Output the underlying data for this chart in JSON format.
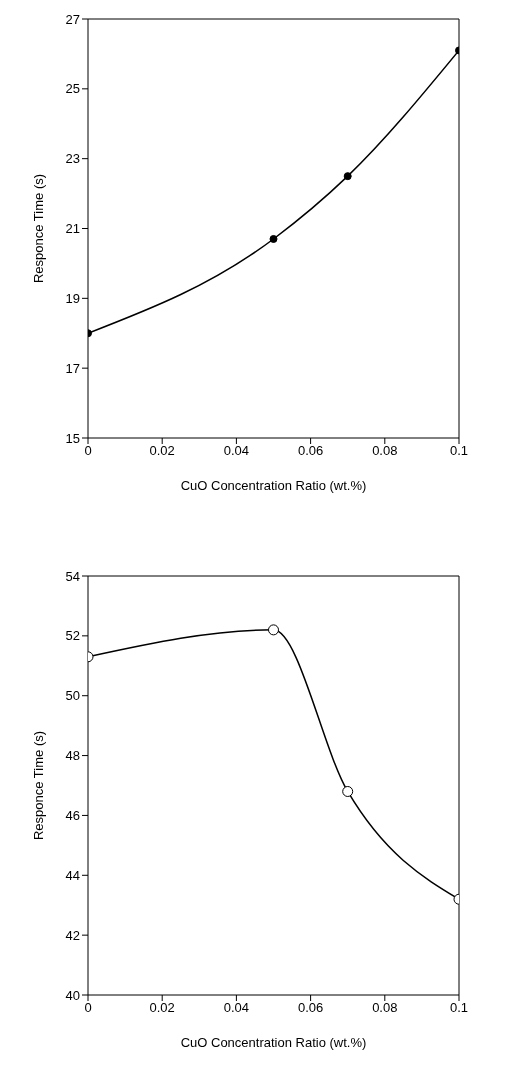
{
  "chart_data": [
    {
      "type": "line",
      "xlabel": "CuO Concentration Ratio (wt.%)",
      "ylabel": "Responce Time (s)",
      "x": [
        0,
        0.05,
        0.07,
        0.1
      ],
      "series": [
        {
          "color": "#000000",
          "values": [
            18.0,
            20.7,
            22.5,
            26.1
          ]
        }
      ],
      "xlim": [
        0,
        0.1
      ],
      "xticks": [
        0,
        0.02,
        0.04,
        0.06,
        0.08,
        0.1
      ],
      "ylim": [
        15,
        27
      ],
      "yticks": [
        15,
        17,
        19,
        21,
        23,
        25,
        27
      ],
      "grid": false,
      "legend": false,
      "marker": "circle",
      "line_style": "solid"
    },
    {
      "type": "line",
      "xlabel": "CuO Concentration Ratio (wt.%)",
      "ylabel": "Responce Time (s)",
      "x": [
        0,
        0.05,
        0.07,
        0.1
      ],
      "series": [
        {
          "color": "#000000",
          "values": [
            51.3,
            52.2,
            46.8,
            43.2
          ]
        }
      ],
      "xlim": [
        0,
        0.1
      ],
      "xticks": [
        0,
        0.02,
        0.04,
        0.06,
        0.08,
        0.1
      ],
      "ylim": [
        40,
        54
      ],
      "yticks": [
        40,
        42,
        44,
        46,
        48,
        50,
        52,
        54
      ],
      "grid": false,
      "legend": false,
      "marker": "circle",
      "line_style": "solid"
    }
  ]
}
